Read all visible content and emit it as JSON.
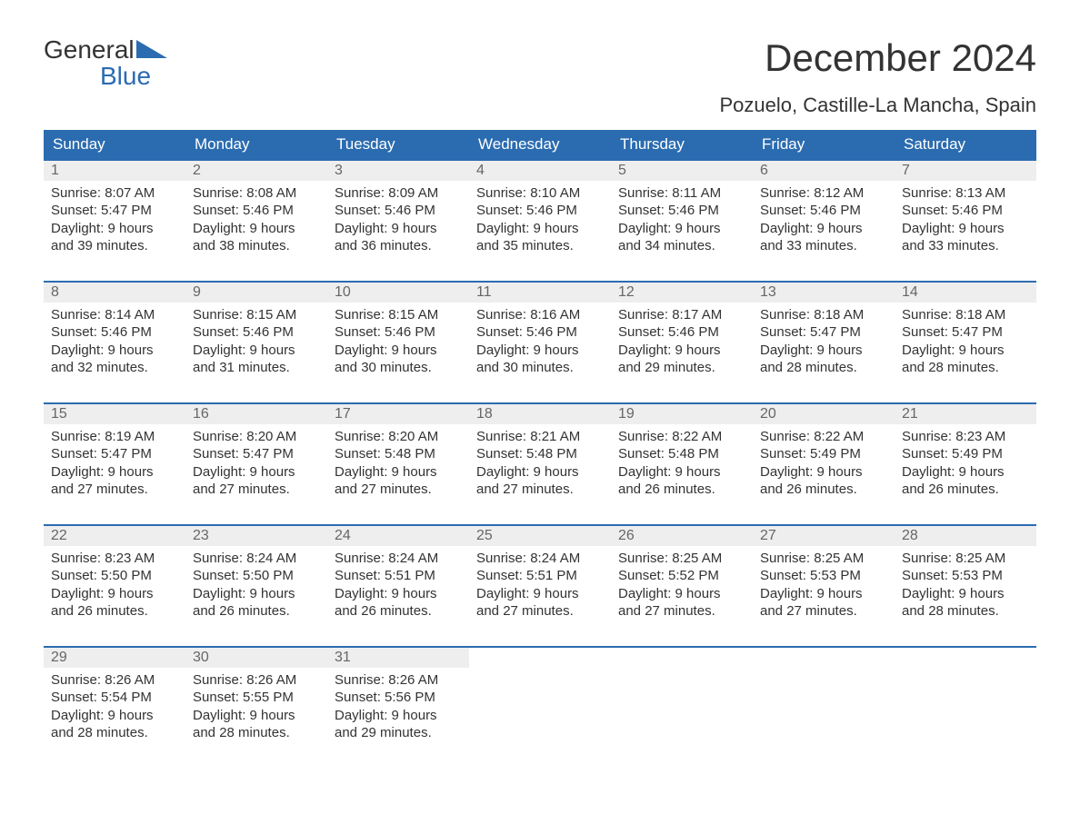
{
  "logo": {
    "line1": "General",
    "line2": "Blue",
    "line1_color": "#333333",
    "line2_color": "#2b6cb0",
    "triangle_color": "#2b6cb0"
  },
  "title": "December 2024",
  "subtitle": "Pozuelo, Castille-La Mancha, Spain",
  "style": {
    "header_bg": "#2b6cb0",
    "header_text": "#ffffff",
    "week_border": "#2b6cb0",
    "daynum_bg": "#eeeeee",
    "daynum_color": "#666666",
    "body_text": "#333333",
    "page_bg": "#ffffff",
    "title_fontsize": 42,
    "subtitle_fontsize": 22,
    "head_fontsize": 17,
    "cell_fontsize": 15
  },
  "day_headers": [
    "Sunday",
    "Monday",
    "Tuesday",
    "Wednesday",
    "Thursday",
    "Friday",
    "Saturday"
  ],
  "weeks": [
    [
      {
        "num": "1",
        "sunrise": "Sunrise: 8:07 AM",
        "sunset": "Sunset: 5:47 PM",
        "day1": "Daylight: 9 hours",
        "day2": "and 39 minutes."
      },
      {
        "num": "2",
        "sunrise": "Sunrise: 8:08 AM",
        "sunset": "Sunset: 5:46 PM",
        "day1": "Daylight: 9 hours",
        "day2": "and 38 minutes."
      },
      {
        "num": "3",
        "sunrise": "Sunrise: 8:09 AM",
        "sunset": "Sunset: 5:46 PM",
        "day1": "Daylight: 9 hours",
        "day2": "and 36 minutes."
      },
      {
        "num": "4",
        "sunrise": "Sunrise: 8:10 AM",
        "sunset": "Sunset: 5:46 PM",
        "day1": "Daylight: 9 hours",
        "day2": "and 35 minutes."
      },
      {
        "num": "5",
        "sunrise": "Sunrise: 8:11 AM",
        "sunset": "Sunset: 5:46 PM",
        "day1": "Daylight: 9 hours",
        "day2": "and 34 minutes."
      },
      {
        "num": "6",
        "sunrise": "Sunrise: 8:12 AM",
        "sunset": "Sunset: 5:46 PM",
        "day1": "Daylight: 9 hours",
        "day2": "and 33 minutes."
      },
      {
        "num": "7",
        "sunrise": "Sunrise: 8:13 AM",
        "sunset": "Sunset: 5:46 PM",
        "day1": "Daylight: 9 hours",
        "day2": "and 33 minutes."
      }
    ],
    [
      {
        "num": "8",
        "sunrise": "Sunrise: 8:14 AM",
        "sunset": "Sunset: 5:46 PM",
        "day1": "Daylight: 9 hours",
        "day2": "and 32 minutes."
      },
      {
        "num": "9",
        "sunrise": "Sunrise: 8:15 AM",
        "sunset": "Sunset: 5:46 PM",
        "day1": "Daylight: 9 hours",
        "day2": "and 31 minutes."
      },
      {
        "num": "10",
        "sunrise": "Sunrise: 8:15 AM",
        "sunset": "Sunset: 5:46 PM",
        "day1": "Daylight: 9 hours",
        "day2": "and 30 minutes."
      },
      {
        "num": "11",
        "sunrise": "Sunrise: 8:16 AM",
        "sunset": "Sunset: 5:46 PM",
        "day1": "Daylight: 9 hours",
        "day2": "and 30 minutes."
      },
      {
        "num": "12",
        "sunrise": "Sunrise: 8:17 AM",
        "sunset": "Sunset: 5:46 PM",
        "day1": "Daylight: 9 hours",
        "day2": "and 29 minutes."
      },
      {
        "num": "13",
        "sunrise": "Sunrise: 8:18 AM",
        "sunset": "Sunset: 5:47 PM",
        "day1": "Daylight: 9 hours",
        "day2": "and 28 minutes."
      },
      {
        "num": "14",
        "sunrise": "Sunrise: 8:18 AM",
        "sunset": "Sunset: 5:47 PM",
        "day1": "Daylight: 9 hours",
        "day2": "and 28 minutes."
      }
    ],
    [
      {
        "num": "15",
        "sunrise": "Sunrise: 8:19 AM",
        "sunset": "Sunset: 5:47 PM",
        "day1": "Daylight: 9 hours",
        "day2": "and 27 minutes."
      },
      {
        "num": "16",
        "sunrise": "Sunrise: 8:20 AM",
        "sunset": "Sunset: 5:47 PM",
        "day1": "Daylight: 9 hours",
        "day2": "and 27 minutes."
      },
      {
        "num": "17",
        "sunrise": "Sunrise: 8:20 AM",
        "sunset": "Sunset: 5:48 PM",
        "day1": "Daylight: 9 hours",
        "day2": "and 27 minutes."
      },
      {
        "num": "18",
        "sunrise": "Sunrise: 8:21 AM",
        "sunset": "Sunset: 5:48 PM",
        "day1": "Daylight: 9 hours",
        "day2": "and 27 minutes."
      },
      {
        "num": "19",
        "sunrise": "Sunrise: 8:22 AM",
        "sunset": "Sunset: 5:48 PM",
        "day1": "Daylight: 9 hours",
        "day2": "and 26 minutes."
      },
      {
        "num": "20",
        "sunrise": "Sunrise: 8:22 AM",
        "sunset": "Sunset: 5:49 PM",
        "day1": "Daylight: 9 hours",
        "day2": "and 26 minutes."
      },
      {
        "num": "21",
        "sunrise": "Sunrise: 8:23 AM",
        "sunset": "Sunset: 5:49 PM",
        "day1": "Daylight: 9 hours",
        "day2": "and 26 minutes."
      }
    ],
    [
      {
        "num": "22",
        "sunrise": "Sunrise: 8:23 AM",
        "sunset": "Sunset: 5:50 PM",
        "day1": "Daylight: 9 hours",
        "day2": "and 26 minutes."
      },
      {
        "num": "23",
        "sunrise": "Sunrise: 8:24 AM",
        "sunset": "Sunset: 5:50 PM",
        "day1": "Daylight: 9 hours",
        "day2": "and 26 minutes."
      },
      {
        "num": "24",
        "sunrise": "Sunrise: 8:24 AM",
        "sunset": "Sunset: 5:51 PM",
        "day1": "Daylight: 9 hours",
        "day2": "and 26 minutes."
      },
      {
        "num": "25",
        "sunrise": "Sunrise: 8:24 AM",
        "sunset": "Sunset: 5:51 PM",
        "day1": "Daylight: 9 hours",
        "day2": "and 27 minutes."
      },
      {
        "num": "26",
        "sunrise": "Sunrise: 8:25 AM",
        "sunset": "Sunset: 5:52 PM",
        "day1": "Daylight: 9 hours",
        "day2": "and 27 minutes."
      },
      {
        "num": "27",
        "sunrise": "Sunrise: 8:25 AM",
        "sunset": "Sunset: 5:53 PM",
        "day1": "Daylight: 9 hours",
        "day2": "and 27 minutes."
      },
      {
        "num": "28",
        "sunrise": "Sunrise: 8:25 AM",
        "sunset": "Sunset: 5:53 PM",
        "day1": "Daylight: 9 hours",
        "day2": "and 28 minutes."
      }
    ],
    [
      {
        "num": "29",
        "sunrise": "Sunrise: 8:26 AM",
        "sunset": "Sunset: 5:54 PM",
        "day1": "Daylight: 9 hours",
        "day2": "and 28 minutes."
      },
      {
        "num": "30",
        "sunrise": "Sunrise: 8:26 AM",
        "sunset": "Sunset: 5:55 PM",
        "day1": "Daylight: 9 hours",
        "day2": "and 28 minutes."
      },
      {
        "num": "31",
        "sunrise": "Sunrise: 8:26 AM",
        "sunset": "Sunset: 5:56 PM",
        "day1": "Daylight: 9 hours",
        "day2": "and 29 minutes."
      },
      {
        "empty": true
      },
      {
        "empty": true
      },
      {
        "empty": true
      },
      {
        "empty": true
      }
    ]
  ]
}
